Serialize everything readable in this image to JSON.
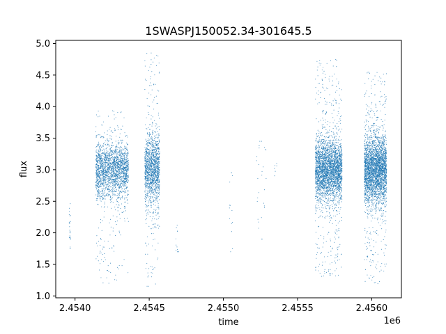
{
  "chart_data": {
    "type": "scatter",
    "title": "1SWASPJ150052.34-301645.5",
    "xlabel": "time",
    "ylabel": "flux",
    "x_offset_label": "1e6",
    "x_multiplier": 1000000,
    "xlim": [
      2453870,
      2456200
    ],
    "ylim": [
      0.97,
      5.05
    ],
    "x_ticks": [
      2454000,
      2454500,
      2455000,
      2455500,
      2456000
    ],
    "x_tick_labels": [
      "2.4540",
      "2.4545",
      "2.4550",
      "2.4555",
      "2.4560"
    ],
    "y_ticks": [
      1.0,
      1.5,
      2.0,
      2.5,
      3.0,
      3.5,
      4.0,
      4.5,
      5.0
    ],
    "y_tick_labels": [
      "1.0",
      "1.5",
      "2.0",
      "2.5",
      "3.0",
      "3.5",
      "4.0",
      "4.5",
      "5.0"
    ],
    "grid": false,
    "marker_color": "#1f77b4",
    "observing_seasons": [
      {
        "x_start": 2453960,
        "x_end": 2453970,
        "n_points": 25,
        "y_center": 2.1,
        "y_spread": 0.25,
        "y_min": 1.75,
        "y_max": 2.5
      },
      {
        "x_start": 2454140,
        "x_end": 2454360,
        "n_points": 2200,
        "y_center": 3.0,
        "y_spread": 0.22,
        "y_min": 1.2,
        "y_max": 3.95
      },
      {
        "x_start": 2454470,
        "x_end": 2454570,
        "n_points": 1500,
        "y_center": 3.0,
        "y_spread": 0.28,
        "y_min": 1.15,
        "y_max": 4.85
      },
      {
        "x_start": 2454680,
        "x_end": 2454700,
        "n_points": 12,
        "y_center": 1.95,
        "y_spread": 0.2,
        "y_min": 1.7,
        "y_max": 2.2
      },
      {
        "x_start": 2455040,
        "x_end": 2455070,
        "n_points": 14,
        "y_center": 2.4,
        "y_spread": 0.45,
        "y_min": 1.7,
        "y_max": 2.95
      },
      {
        "x_start": 2455220,
        "x_end": 2455290,
        "n_points": 28,
        "y_center": 2.6,
        "y_spread": 0.5,
        "y_min": 1.9,
        "y_max": 3.45
      },
      {
        "x_start": 2455340,
        "x_end": 2455360,
        "n_points": 6,
        "y_center": 3.05,
        "y_spread": 0.1,
        "y_min": 2.9,
        "y_max": 3.2
      },
      {
        "x_start": 2455620,
        "x_end": 2455800,
        "n_points": 3200,
        "y_center": 3.0,
        "y_spread": 0.25,
        "y_min": 1.3,
        "y_max": 4.75
      },
      {
        "x_start": 2455950,
        "x_end": 2456100,
        "n_points": 3200,
        "y_center": 3.0,
        "y_spread": 0.27,
        "y_min": 1.15,
        "y_max": 4.55
      }
    ]
  }
}
